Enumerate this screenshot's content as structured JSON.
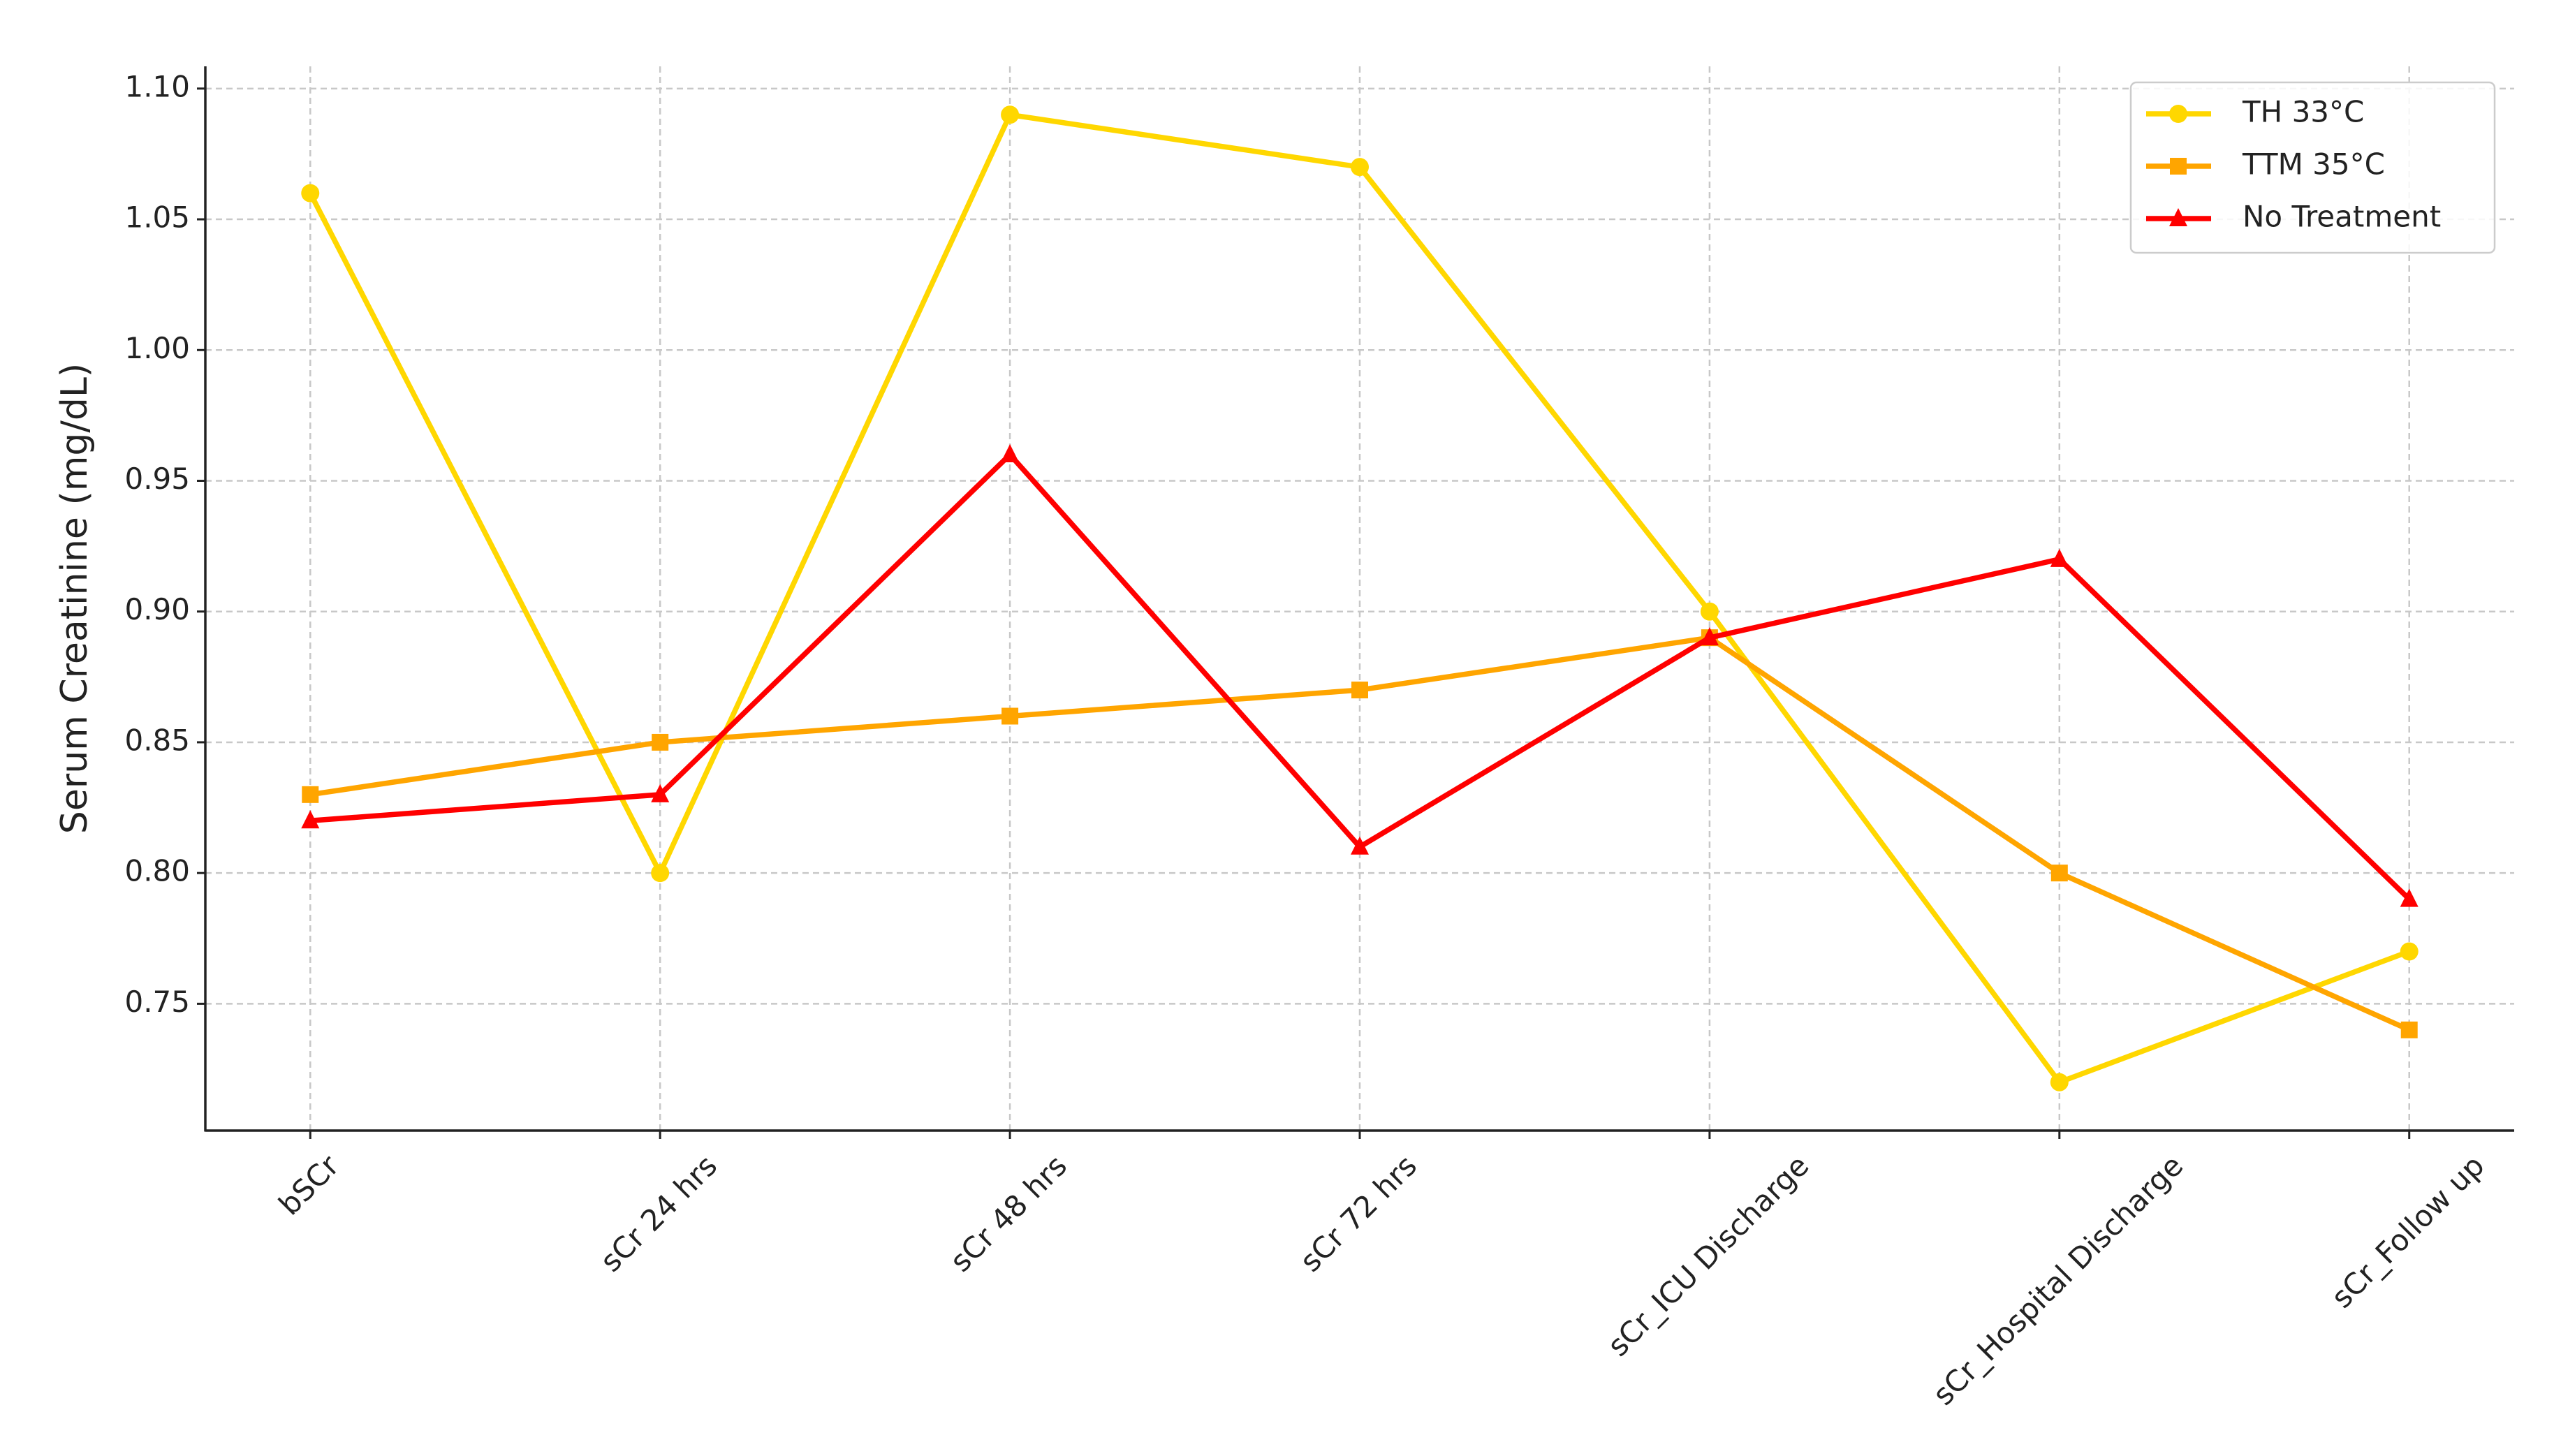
{
  "chart_data": {
    "type": "line",
    "y_label": "Serum Creatinine (mg/dL)",
    "categories": [
      "bSCr",
      "sCr 24 hrs",
      "sCr 48 hrs",
      "sCr 72 hrs",
      "sCr_ICU Discharge",
      "sCr_Hospital Discharge",
      "sCr_Follow up"
    ],
    "series": [
      {
        "name": "TH 33°C",
        "color": "#FFD700",
        "marker": "circle",
        "values": [
          1.06,
          0.8,
          1.09,
          1.07,
          0.9,
          0.72,
          0.77
        ]
      },
      {
        "name": "TTM 35°C",
        "color": "#FFA500",
        "marker": "square",
        "values": [
          0.83,
          0.85,
          0.86,
          0.87,
          0.89,
          0.8,
          0.74
        ]
      },
      {
        "name": "No Treatment",
        "color": "#FF0000",
        "marker": "triangle",
        "values": [
          0.82,
          0.83,
          0.96,
          0.81,
          0.89,
          0.92,
          0.79
        ]
      }
    ],
    "ylim": [
      0.7015,
      1.1085
    ],
    "yticks": [
      0.75,
      {
        "value": 0.8,
        "label": "0.80"
      },
      0.85,
      {
        "value": 0.9,
        "label": "0.90"
      },
      0.95,
      {
        "value": 1.0,
        "label": "1.00"
      },
      1.05,
      {
        "value": 1.1,
        "label": "1.10"
      }
    ],
    "grid": true,
    "legend": "upper right"
  }
}
